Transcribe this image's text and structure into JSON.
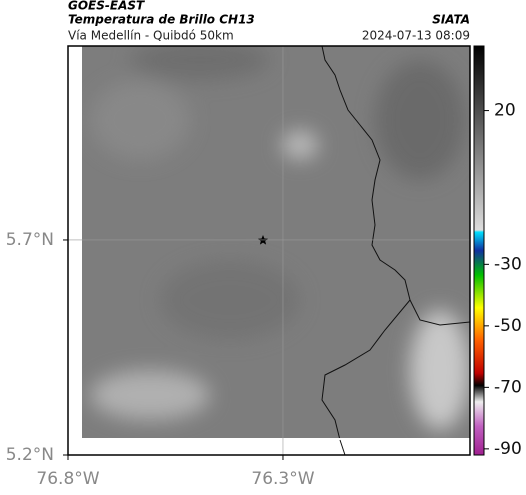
{
  "header": {
    "title": "GOES-EAST",
    "subtitle": "Temperatura de Brillo CH13",
    "route": "Vía Medellín - Quibdó 50km",
    "source": "SIATA",
    "timestamp": "2024-07-13 08:09"
  },
  "map": {
    "xlim": [
      -76.8,
      -75.865
    ],
    "ylim": [
      5.2,
      6.151
    ],
    "xticks": [
      {
        "value": -76.8,
        "label": "76.8°W"
      },
      {
        "value": -76.3,
        "label": "76.3°W"
      }
    ],
    "yticks": [
      {
        "value": 5.2,
        "label": "5.2°N"
      },
      {
        "value": 5.7,
        "label": "5.7°N"
      }
    ],
    "grid": true,
    "colorbar": {
      "lim": [
        -92,
        41
      ],
      "ticks": [
        20,
        -30,
        -50,
        -70,
        -90
      ]
    }
  }
}
